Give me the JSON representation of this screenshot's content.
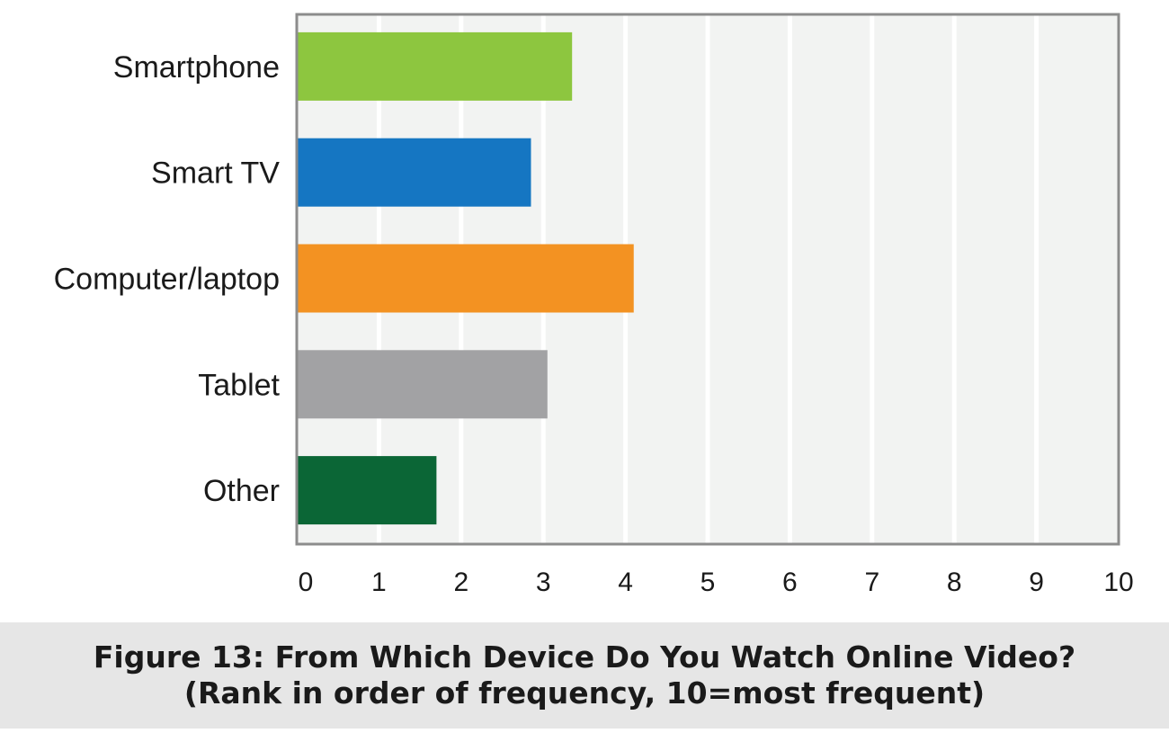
{
  "chart_data": {
    "type": "bar",
    "orientation": "horizontal",
    "categories": [
      "Smartphone",
      "Smart TV",
      "Computer/laptop",
      "Tablet",
      "Other"
    ],
    "values": [
      3.35,
      2.85,
      4.1,
      3.05,
      1.7
    ],
    "xlim": [
      0,
      10
    ],
    "x_ticks": [
      "0",
      "1",
      "2",
      "3",
      "4",
      "5",
      "6",
      "7",
      "8",
      "9",
      "10"
    ],
    "grid": "vertical",
    "title": "Figure 13: From Which Device Do You Watch Online Video?",
    "subtitle": "(Rank in order of frequency, 10=most frequent)",
    "xlabel": "",
    "ylabel": "",
    "colors": [
      "#8dc63f",
      "#1576c2",
      "#f39222",
      "#a2a2a4",
      "#0b6636"
    ],
    "plot_background": "#f2f3f2",
    "frame_color": "#8c8c8c",
    "caption_background": "#e6e6e6"
  }
}
